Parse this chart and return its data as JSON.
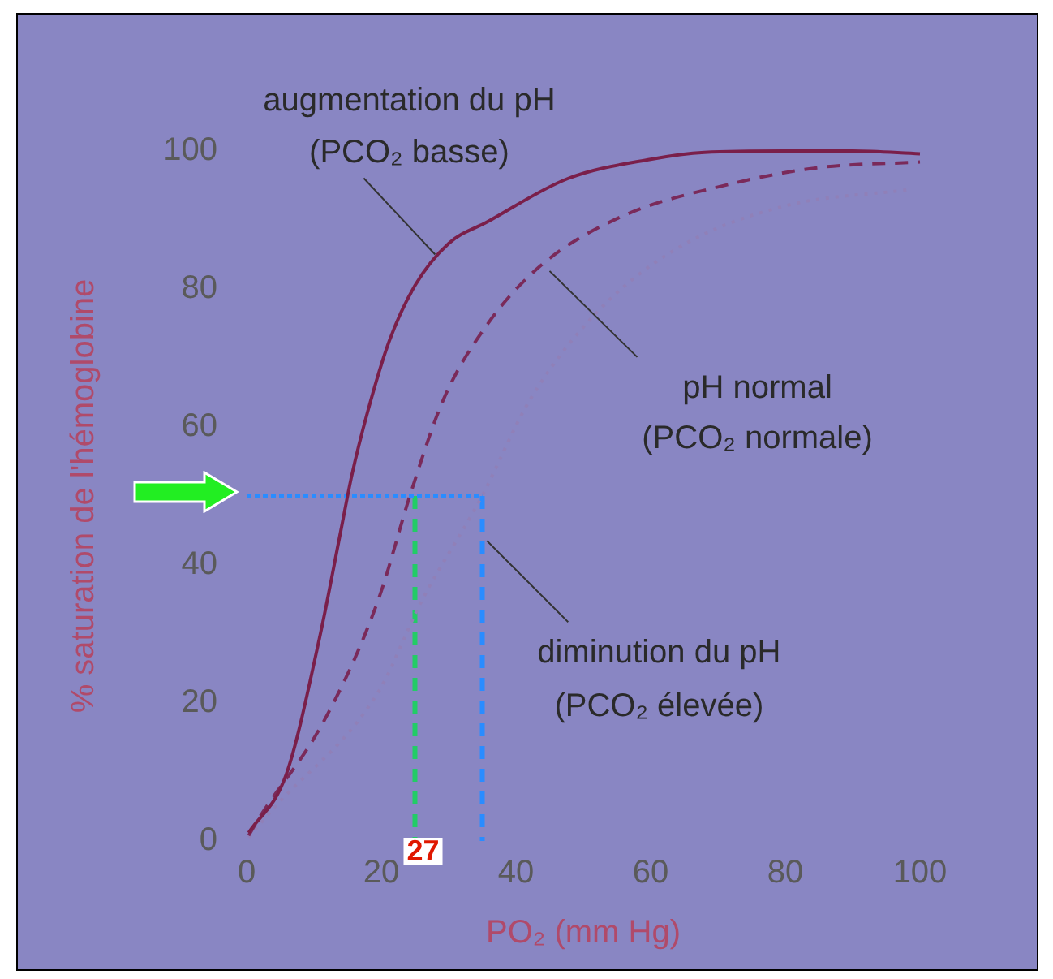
{
  "chart_data": {
    "type": "line",
    "xlabel": "PO₂ (mm Hg)",
    "ylabel": "% saturation de l'hémoglobine",
    "xlim": [
      0,
      100
    ],
    "ylim": [
      0,
      100
    ],
    "xticks": [
      0,
      20,
      40,
      60,
      80,
      100
    ],
    "yticks": [
      0,
      20,
      40,
      60,
      80,
      100
    ],
    "grid": false,
    "legend": false,
    "marker": "none",
    "series": [
      {
        "color": "#7a1f4a",
        "line_style": "solid",
        "x": [
          0.3,
          5.9,
          10.8,
          14,
          15.6,
          18,
          21.2,
          25,
          30,
          35.7,
          47.7,
          60,
          68,
          80,
          90,
          100
        ],
        "values": [
          1.2,
          9.7,
          29.3,
          45,
          52.9,
          62.3,
          72.5,
          80.5,
          86.6,
          89.7,
          96,
          98.8,
          99.8,
          100,
          100,
          99.6
        ]
      },
      {
        "color": "#7a2a5a",
        "line_style": "dashed",
        "x": [
          0.3,
          1.9,
          11.6,
          19.5,
          24.4,
          29.2,
          35.7,
          43.7,
          55.7,
          71.8,
          85,
          100
        ],
        "values": [
          0.8,
          3.4,
          17.6,
          34.8,
          50.5,
          63.9,
          74.8,
          83.4,
          90.5,
          95.2,
          97.6,
          98.4
        ]
      },
      {
        "color": "#9080b8",
        "line_style": "dotted",
        "x": [
          0.3,
          3.5,
          19.5,
          26,
          34.8,
          42,
          51.8,
          63.8,
          79.8,
          98.3
        ],
        "values": [
          0.5,
          4.2,
          21.5,
          34.8,
          49.7,
          63.8,
          76.4,
          85.8,
          92,
          94.4
        ]
      },
      {
        "color": "#2a8cff",
        "line_style": "dotted",
        "x": [
          0,
          35
        ],
        "values": [
          50,
          50
        ]
      },
      {
        "color": "#2a8cff",
        "line_style": "dashed",
        "x": [
          35,
          35
        ],
        "values": [
          50,
          0
        ]
      },
      {
        "color": "#22cc66",
        "line_style": "dashed",
        "x": [
          25,
          25
        ],
        "values": [
          50,
          0
        ]
      }
    ],
    "annotations": [
      {
        "text": "augmentation du pH\n(PCO₂ basse)",
        "x": 28,
        "y": 85
      },
      {
        "text": "pH normal\n(PCO₂ normale)",
        "x": 45,
        "y": 82.6
      },
      {
        "text": "diminution du pH\n(PCO₂ élevée)",
        "x": 35.7,
        "y": 43.5
      },
      {
        "text": "27",
        "x": 25,
        "y": 0
      }
    ]
  }
}
